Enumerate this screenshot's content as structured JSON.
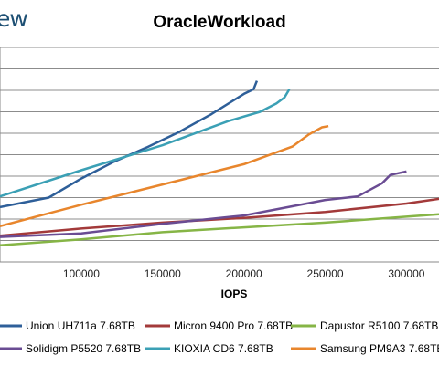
{
  "logo_fragment": "ew",
  "chart_data": {
    "type": "line",
    "title": "OracleWorkload",
    "xlabel": "IOPS",
    "ylabel": "",
    "xlim": [
      50000,
      320000
    ],
    "x_ticks": [
      100000,
      150000,
      200000,
      250000,
      300000
    ],
    "y_gridlines": 11,
    "grid": true,
    "legend_position": "bottom",
    "series": [
      {
        "name": "Union UH711a 7.68TB",
        "color": "#2e5f99",
        "points": [
          [
            50000,
            0.46
          ],
          [
            80000,
            0.54
          ],
          [
            100000,
            0.7
          ],
          [
            120000,
            0.84
          ],
          [
            140000,
            0.96
          ],
          [
            160000,
            1.09
          ],
          [
            180000,
            1.24
          ],
          [
            200000,
            1.41
          ],
          [
            206000,
            1.45
          ],
          [
            208000,
            1.52
          ]
        ]
      },
      {
        "name": "Micron 9400 Pro 7.68TB",
        "color": "#a33a3a",
        "points": [
          [
            50000,
            0.22
          ],
          [
            100000,
            0.28
          ],
          [
            150000,
            0.33
          ],
          [
            200000,
            0.37
          ],
          [
            250000,
            0.42
          ],
          [
            300000,
            0.49
          ],
          [
            320000,
            0.53
          ]
        ]
      },
      {
        "name": "Dapustor R5100 7.68TB",
        "color": "#86b546",
        "points": [
          [
            50000,
            0.14
          ],
          [
            100000,
            0.19
          ],
          [
            150000,
            0.25
          ],
          [
            200000,
            0.29
          ],
          [
            250000,
            0.33
          ],
          [
            300000,
            0.38
          ],
          [
            320000,
            0.4
          ]
        ]
      },
      {
        "name": "Solidigm P5520 7.68TB",
        "color": "#6a4c93",
        "points": [
          [
            50000,
            0.21
          ],
          [
            100000,
            0.24
          ],
          [
            150000,
            0.32
          ],
          [
            200000,
            0.39
          ],
          [
            250000,
            0.52
          ],
          [
            270000,
            0.55
          ],
          [
            285000,
            0.66
          ],
          [
            290000,
            0.73
          ],
          [
            300000,
            0.76
          ]
        ]
      },
      {
        "name": "KIOXIA CD6 7.68TB",
        "color": "#3ba0b5",
        "points": [
          [
            50000,
            0.55
          ],
          [
            100000,
            0.77
          ],
          [
            150000,
            0.98
          ],
          [
            190000,
            1.18
          ],
          [
            210000,
            1.26
          ],
          [
            220000,
            1.33
          ],
          [
            225000,
            1.38
          ],
          [
            228000,
            1.45
          ]
        ]
      },
      {
        "name": "Samsung PM9A3 7.68TB",
        "color": "#e8862d",
        "points": [
          [
            50000,
            0.3
          ],
          [
            100000,
            0.48
          ],
          [
            150000,
            0.65
          ],
          [
            200000,
            0.82
          ],
          [
            230000,
            0.97
          ],
          [
            240000,
            1.07
          ],
          [
            248000,
            1.13
          ],
          [
            252000,
            1.14
          ]
        ]
      }
    ]
  }
}
